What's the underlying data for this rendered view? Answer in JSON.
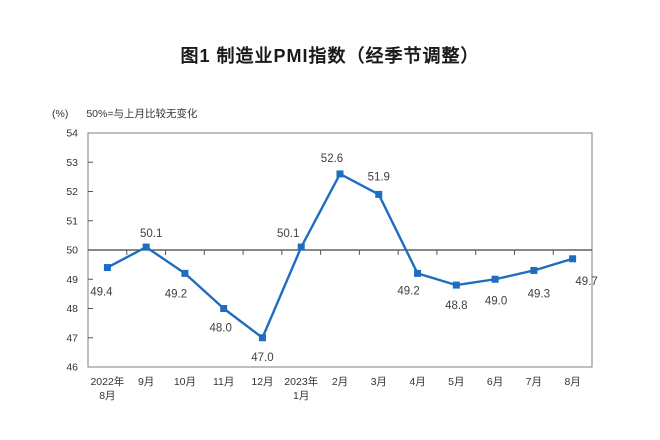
{
  "title": "图1 制造业PMI指数（经季节调整）",
  "y_axis_unit": "(%)",
  "reference_note": "50%=与上月比较无变化",
  "chart_data": {
    "type": "line",
    "title": "图1 制造业PMI指数（经季节调整）",
    "series_name": "制造业PMI指数",
    "categories": [
      [
        "2022年",
        "8月"
      ],
      [
        "9月"
      ],
      [
        "10月"
      ],
      [
        "11月"
      ],
      [
        "12月"
      ],
      [
        "2023年",
        "1月"
      ],
      [
        "2月"
      ],
      [
        "3月"
      ],
      [
        "4月"
      ],
      [
        "5月"
      ],
      [
        "6月"
      ],
      [
        "7月"
      ],
      [
        "8月"
      ]
    ],
    "values": [
      49.4,
      50.1,
      49.2,
      48.0,
      47.0,
      50.1,
      52.6,
      51.9,
      49.2,
      48.8,
      49.0,
      49.3,
      49.7
    ],
    "ylim": [
      46,
      54
    ],
    "y_ticks": [
      46,
      47,
      48,
      49,
      50,
      51,
      52,
      53,
      54
    ],
    "reference_line": 50,
    "grid": false,
    "legend": "none",
    "colors": {
      "line": "#1f6dbf",
      "marker": "#1f6dbf",
      "frame": "#7f7f7f",
      "reference_line": "#404040",
      "tick": "#555555",
      "axis_text": "#333333",
      "data_label": "#3f3f3f"
    }
  }
}
